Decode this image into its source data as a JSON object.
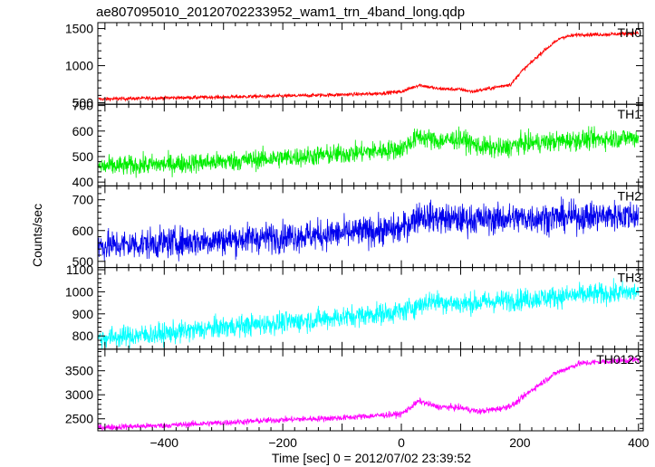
{
  "chart_data": {
    "type": "line",
    "title": "ae807095010_20120702233952_wam1_trn_4band_long.qdp",
    "xlabel": "Time [sec] 0 = 2012/07/02 23:39:52",
    "ylabel": "Counts/sec",
    "xlim": [
      -512,
      408
    ],
    "x_ticks": [
      -400,
      -200,
      0,
      200,
      400
    ],
    "x_tick_labels": [
      "−400",
      "−200",
      "0",
      "200",
      "400"
    ],
    "grid": false,
    "legend": "none",
    "panels": [
      {
        "label": "TH0",
        "color": "#ff0000",
        "ylim": [
          480,
          1580
        ],
        "yticks": [
          500,
          1000,
          1500
        ],
        "ytick_labels": [
          "500",
          "1000",
          "1500"
        ],
        "noise": 18,
        "trend": [
          [
            -510,
            550
          ],
          [
            -400,
            565
          ],
          [
            -200,
            590
          ],
          [
            -50,
            620
          ],
          [
            0,
            650
          ],
          [
            30,
            740
          ],
          [
            60,
            690
          ],
          [
            100,
            680
          ],
          [
            120,
            650
          ],
          [
            160,
            710
          ],
          [
            185,
            750
          ],
          [
            200,
            900
          ],
          [
            240,
            1200
          ],
          [
            270,
            1380
          ],
          [
            300,
            1420
          ],
          [
            340,
            1420
          ],
          [
            400,
            1440
          ]
        ]
      },
      {
        "label": "TH1",
        "color": "#00ee00",
        "ylim": [
          385,
          705
        ],
        "yticks": [
          400,
          500,
          600,
          700
        ],
        "ytick_labels": [
          "400",
          "500",
          "600",
          "700"
        ],
        "noise": 28,
        "trend": [
          [
            -510,
            460
          ],
          [
            -400,
            470
          ],
          [
            -300,
            480
          ],
          [
            -200,
            495
          ],
          [
            -100,
            510
          ],
          [
            0,
            530
          ],
          [
            30,
            580
          ],
          [
            60,
            560
          ],
          [
            100,
            570
          ],
          [
            130,
            540
          ],
          [
            170,
            530
          ],
          [
            200,
            550
          ],
          [
            300,
            565
          ],
          [
            400,
            575
          ]
        ]
      },
      {
        "label": "TH2",
        "color": "#0000ee",
        "ylim": [
          480,
          745
        ],
        "yticks": [
          500,
          600,
          700
        ],
        "ytick_labels": [
          "500",
          "600",
          "700"
        ],
        "noise": 35,
        "trend": [
          [
            -510,
            550
          ],
          [
            -400,
            560
          ],
          [
            -300,
            570
          ],
          [
            -200,
            580
          ],
          [
            -100,
            590
          ],
          [
            0,
            605
          ],
          [
            30,
            650
          ],
          [
            60,
            640
          ],
          [
            100,
            635
          ],
          [
            200,
            640
          ],
          [
            300,
            645
          ],
          [
            400,
            650
          ]
        ]
      },
      {
        "label": "TH3",
        "color": "#00ffff",
        "ylim": [
          740,
          1110
        ],
        "yticks": [
          800,
          900,
          1000,
          1100
        ],
        "ytick_labels": [
          "800",
          "900",
          "1000",
          "1100"
        ],
        "noise": 35,
        "trend": [
          [
            -510,
            790
          ],
          [
            -400,
            810
          ],
          [
            -300,
            840
          ],
          [
            -200,
            860
          ],
          [
            -100,
            885
          ],
          [
            0,
            910
          ],
          [
            50,
            960
          ],
          [
            100,
            945
          ],
          [
            200,
            965
          ],
          [
            300,
            985
          ],
          [
            400,
            1000
          ]
        ]
      },
      {
        "label": "TH0123",
        "color": "#ff00ff",
        "ylim": [
          2250,
          3950
        ],
        "yticks": [
          2500,
          3000,
          3500
        ],
        "ytick_labels": [
          "2500",
          "3000",
          "3500"
        ],
        "noise": 45,
        "trend": [
          [
            -510,
            2320
          ],
          [
            -400,
            2360
          ],
          [
            -300,
            2420
          ],
          [
            -200,
            2480
          ],
          [
            -100,
            2520
          ],
          [
            0,
            2600
          ],
          [
            30,
            2870
          ],
          [
            60,
            2750
          ],
          [
            100,
            2730
          ],
          [
            130,
            2650
          ],
          [
            170,
            2720
          ],
          [
            190,
            2800
          ],
          [
            220,
            3100
          ],
          [
            260,
            3450
          ],
          [
            300,
            3650
          ],
          [
            350,
            3700
          ],
          [
            400,
            3730
          ]
        ]
      }
    ]
  }
}
